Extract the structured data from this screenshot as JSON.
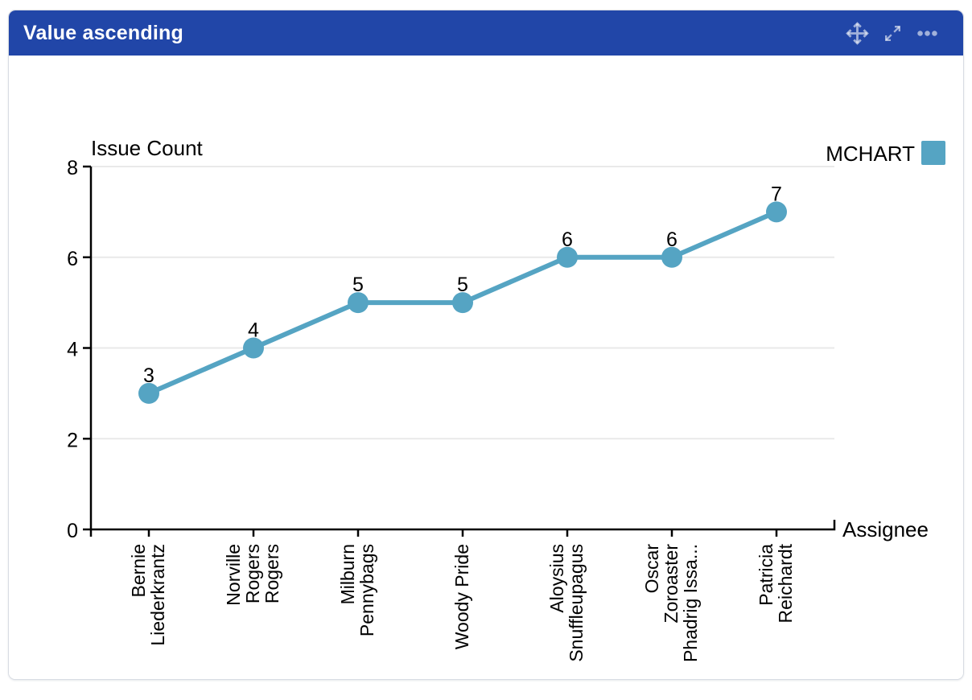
{
  "panel": {
    "header": {
      "title": "Value ascending",
      "icons": [
        "move-icon",
        "expand-icon",
        "more-icon"
      ]
    }
  },
  "colors": {
    "header_bg": "#2146a8",
    "header_icon": "rgba(255,255,255,0.58)",
    "series": "#55a4c3",
    "grid": "#e9e9e9",
    "axis": "#000000",
    "panel_border": "#d8dce3"
  },
  "chart_data": {
    "type": "line",
    "title": "",
    "ylabel": "Issue Count",
    "xlabel": "Assignee",
    "ylim": [
      0,
      8
    ],
    "yticks": [
      0,
      2,
      4,
      6,
      8
    ],
    "grid": "horizontal",
    "legend_position": "top-right",
    "categories": [
      "Bernie Liederkrantz",
      "Norville Rogers Rogers",
      "Milburn Pennybags",
      "Woody Pride",
      "Aloysius Snuffleupagus",
      "Oscar Zoroaster Phadrig Issa...",
      "Patricia Reichardt"
    ],
    "category_lines": [
      [
        "Bernie",
        "Liederkrantz"
      ],
      [
        "Norville",
        "Rogers",
        "Rogers"
      ],
      [
        "Milburn",
        "Pennybags"
      ],
      [
        "Woody Pride"
      ],
      [
        "Aloysius",
        "Snuffleupagus"
      ],
      [
        "Oscar",
        "Zoroaster",
        "Phadrig Issa..."
      ],
      [
        "Patricia",
        "Reichardt"
      ]
    ],
    "series": [
      {
        "name": "MCHART",
        "values": [
          3,
          4,
          5,
          5,
          6,
          6,
          7
        ]
      }
    ],
    "data_labels": [
      "3",
      "4",
      "5",
      "5",
      "6",
      "6",
      "7"
    ]
  }
}
